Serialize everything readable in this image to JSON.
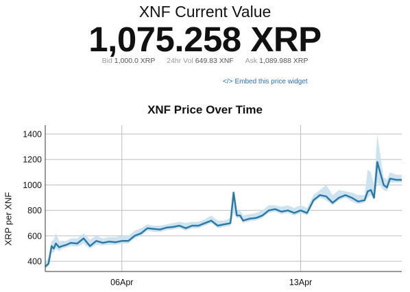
{
  "header": {
    "title": "XNF Current Value",
    "value": "1,075.258 XRP"
  },
  "stats": {
    "bid_label": "Bid",
    "bid_value": "1,000.0 XRP",
    "vol_label": "24hr Vol",
    "vol_value": "649.83 XNF",
    "ask_label": "Ask",
    "ask_value": "1,089.988 XRP"
  },
  "embed_link": {
    "icon": "</>",
    "label": "Embed this price widget"
  },
  "colors": {
    "line": "#2a7aa8",
    "band": "#c9e0ee",
    "grid": "#bdbdbd",
    "link": "#2a6ebb"
  },
  "chart_data": {
    "type": "line",
    "title": "XNF Price Over Time",
    "xlabel": "",
    "ylabel": "XRP per XNF",
    "x_ticks": [
      "06Apr",
      "13Apr"
    ],
    "y_ticks": [
      400,
      600,
      800,
      1000,
      1200,
      1400
    ],
    "ylim": [
      320,
      1470
    ],
    "xlim": [
      "2013-04-03",
      "2013-04-16"
    ],
    "grid": true,
    "series": [
      {
        "x": [
          "2013-04-03 00:00",
          "2013-04-03 03:00",
          "2013-04-03 06:00",
          "2013-04-03 08:00",
          "2013-04-03 10:00",
          "2013-04-03 13:00",
          "2013-04-03 16:00",
          "2013-04-03 20:00",
          "2013-04-04 00:00",
          "2013-04-04 06:00",
          "2013-04-04 12:00",
          "2013-04-04 18:00",
          "2013-04-05 00:00",
          "2013-04-05 06:00",
          "2013-04-05 12:00",
          "2013-04-05 18:00",
          "2013-04-06 00:00",
          "2013-04-06 06:00",
          "2013-04-06 12:00",
          "2013-04-06 18:00",
          "2013-04-07 00:00",
          "2013-04-07 06:00",
          "2013-04-07 12:00",
          "2013-04-07 18:00",
          "2013-04-08 00:00",
          "2013-04-08 06:00",
          "2013-04-08 12:00",
          "2013-04-08 18:00",
          "2013-04-09 00:00",
          "2013-04-09 06:00",
          "2013-04-09 12:00",
          "2013-04-09 18:00",
          "2013-04-10 00:00",
          "2013-04-10 06:00",
          "2013-04-10 09:00",
          "2013-04-10 12:00",
          "2013-04-10 15:00",
          "2013-04-10 18:00",
          "2013-04-11 00:00",
          "2013-04-11 06:00",
          "2013-04-11 12:00",
          "2013-04-11 18:00",
          "2013-04-12 00:00",
          "2013-04-12 06:00",
          "2013-04-12 12:00",
          "2013-04-12 18:00",
          "2013-04-13 00:00",
          "2013-04-13 06:00",
          "2013-04-13 12:00",
          "2013-04-13 18:00",
          "2013-04-14 00:00",
          "2013-04-14 06:00",
          "2013-04-14 12:00",
          "2013-04-14 18:00",
          "2013-04-15 00:00",
          "2013-04-15 06:00",
          "2013-04-15 12:00",
          "2013-04-15 15:00",
          "2013-04-15 18:00",
          "2013-04-15 21:00",
          "2013-04-16 00:00",
          "2013-04-16 06:00",
          "2013-04-16 09:00",
          "2013-04-16 12:00",
          "2013-04-16 18:00",
          "2013-04-16 23:00"
        ],
        "values": [
          360,
          380,
          520,
          500,
          540,
          510,
          520,
          530,
          545,
          540,
          580,
          520,
          560,
          545,
          555,
          550,
          560,
          560,
          600,
          620,
          660,
          655,
          650,
          665,
          670,
          680,
          660,
          680,
          680,
          700,
          720,
          680,
          690,
          700,
          940,
          760,
          760,
          720,
          735,
          740,
          760,
          800,
          810,
          790,
          800,
          780,
          800,
          780,
          880,
          920,
          910,
          860,
          900,
          920,
          900,
          870,
          880,
          950,
          960,
          900,
          1180,
          1000,
          980,
          1050,
          1040,
          1040
        ],
        "band_low": [
          340,
          360,
          470,
          470,
          500,
          480,
          500,
          510,
          520,
          515,
          540,
          500,
          530,
          525,
          530,
          530,
          540,
          540,
          580,
          600,
          640,
          630,
          630,
          645,
          650,
          660,
          640,
          660,
          660,
          680,
          700,
          660,
          670,
          680,
          780,
          740,
          740,
          700,
          715,
          720,
          740,
          780,
          790,
          770,
          780,
          760,
          780,
          760,
          860,
          900,
          880,
          840,
          880,
          900,
          870,
          850,
          860,
          900,
          920,
          880,
          1020,
          960,
          950,
          1020,
          1020,
          1020
        ],
        "band_high": [
          390,
          430,
          560,
          570,
          620,
          560,
          560,
          560,
          580,
          580,
          620,
          570,
          600,
          580,
          590,
          590,
          600,
          600,
          640,
          660,
          690,
          680,
          680,
          690,
          700,
          710,
          700,
          710,
          710,
          730,
          760,
          720,
          720,
          740,
          960,
          800,
          800,
          760,
          770,
          780,
          800,
          840,
          840,
          830,
          840,
          820,
          840,
          820,
          920,
          960,
          1000,
          920,
          960,
          950,
          940,
          920,
          920,
          1120,
          1100,
          1000,
          1400,
          1060,
          1040,
          1100,
          1080,
          1080
        ]
      }
    ]
  }
}
